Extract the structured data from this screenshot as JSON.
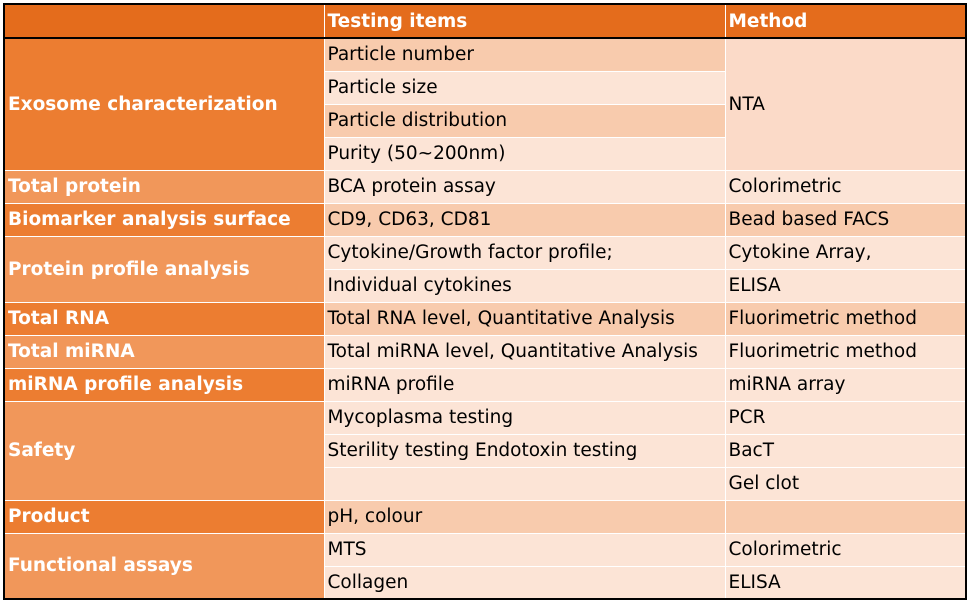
{
  "header": {
    "col1": "",
    "col2": "Testing items",
    "col3": "Method"
  },
  "rows": [
    {
      "category": "Exosome characterization",
      "items": [
        "Particle number",
        "Particle size",
        "Particle distribution",
        "Purity (50~200nm)"
      ],
      "methods": [
        "NTA"
      ]
    },
    {
      "category": "Total protein",
      "items": [
        "BCA protein assay"
      ],
      "methods": [
        "Colorimetric"
      ]
    },
    {
      "category": "Biomarker analysis surface",
      "items": [
        "CD9, CD63, CD81"
      ],
      "methods": [
        "Bead based FACS"
      ]
    },
    {
      "category": "Protein profile analysis",
      "items": [
        "Cytokine/Growth factor profile;",
        "Individual cytokines"
      ],
      "methods": [
        "Cytokine Array,",
        "ELISA"
      ]
    },
    {
      "category": "Total RNA",
      "items": [
        "Total RNA level, Quantitative Analysis"
      ],
      "methods": [
        "Fluorimetric method"
      ]
    },
    {
      "category": "Total miRNA",
      "items": [
        "Total miRNA level, Quantitative Analysis"
      ],
      "methods": [
        "Fluorimetric method"
      ]
    },
    {
      "category": "miRNA profile analysis",
      "items": [
        "miRNA profile"
      ],
      "methods": [
        "miRNA array"
      ]
    },
    {
      "category": "Safety",
      "items": [
        "Mycoplasma testing",
        "Sterility testing Endotoxin testing",
        ""
      ],
      "methods": [
        "PCR",
        "BacT",
        "Gel clot"
      ]
    },
    {
      "category": "Product",
      "items": [
        "pH, colour"
      ],
      "methods": [
        ""
      ]
    },
    {
      "category": "Functional assays",
      "items": [
        "MTS",
        "Collagen"
      ],
      "methods": [
        "Colorimetric",
        "ELISA"
      ]
    }
  ],
  "colors": {
    "header": "#e46c1c",
    "category_dark": "#ec7d31",
    "category_light": "#f1975a",
    "cell_shaded": "#f8cbad",
    "cell_light": "#fce4d6"
  }
}
